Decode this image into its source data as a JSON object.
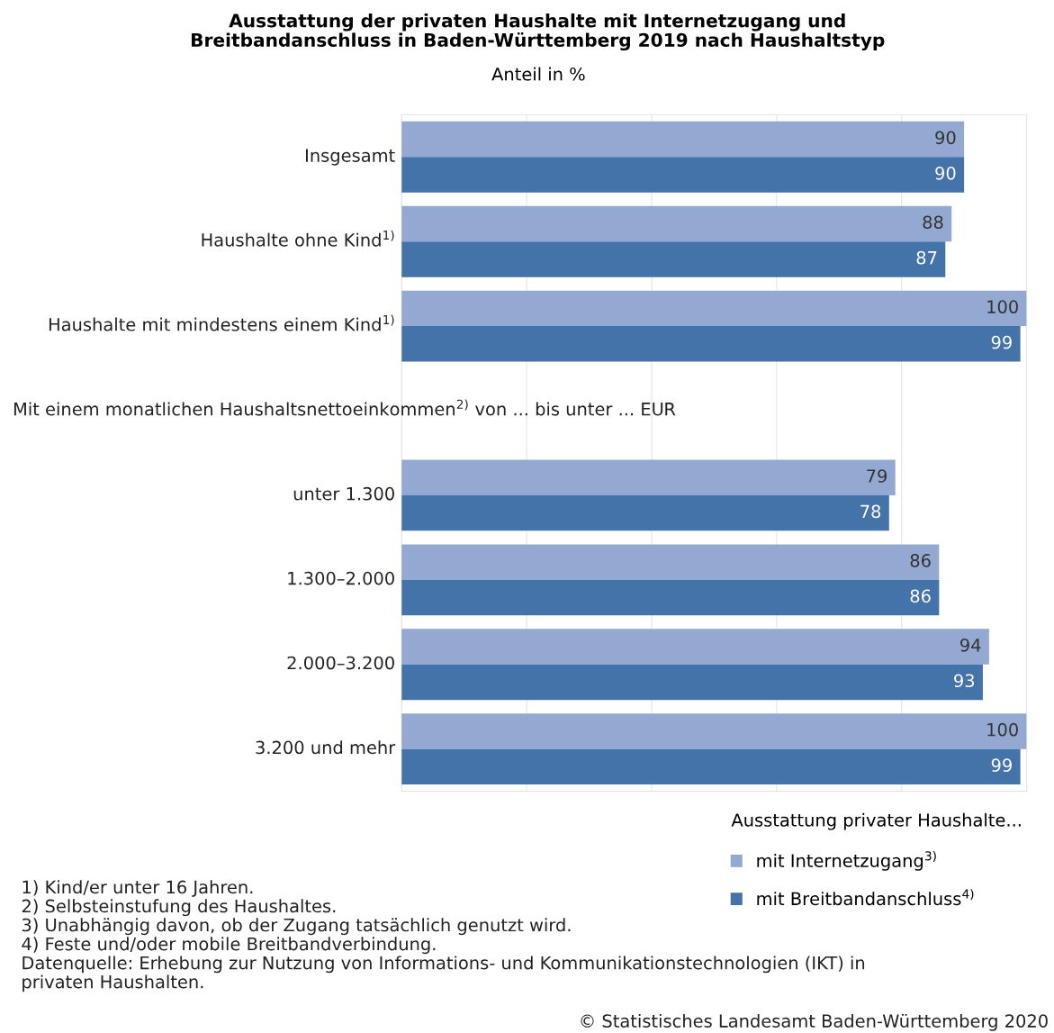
{
  "chart_data": {
    "type": "bar",
    "orientation": "horizontal",
    "title": "Ausstattung der privaten Haushalte mit Internetzugang und\nBreitbandanschluss in Baden-Württemberg 2019 nach Haushaltstyp",
    "subtitle": "Anteil in %",
    "categories": [
      "Insgesamt",
      "Haushalte ohne Kind$^{1)}$",
      "Haushalte mit mindestens einem Kind$^{1)}$",
      null,
      "unter 1.300",
      "1.300–2.000",
      "2.000–3.200",
      "3.200 und mehr"
    ],
    "series": [
      {
        "name": "mit Internetzugang$^{3)}$",
        "color": "#94a9d1",
        "values": [
          90,
          88,
          100,
          null,
          79,
          86,
          94,
          100
        ]
      },
      {
        "name": "mit Breitbandanschluss$^{4)}$",
        "color": "#4473a9",
        "values": [
          90,
          87,
          99,
          null,
          78,
          86,
          93,
          99
        ]
      }
    ],
    "xlim": [
      0,
      100
    ],
    "tick_labels": false,
    "data_labels": true,
    "grid": "x",
    "legend": "bottom right",
    "legend_title": "Ausstattung privater Haushalte...",
    "annotations": [
      "Mit einem monatlichen Haushaltsnettoeinkommen$^{2)}$ von ... bis unter ... EUR",
      "1) Kind/er unter 16 Jahren.\n2) Selbsteinstufung des Haushaltes.\n3) Unabhängig davon, ob der Zugang tatsächlich genutzt wird.\n4) Feste und/oder mobile Breitbandverbindung.\nDatenquelle: Erhebung zur Nutzung von Informations- und Kommunikationstechnologien (IKT) in\nprivaten Haushalten.",
      "© Statistisches Landesamt Baden-Württemberg 2020"
    ]
  }
}
